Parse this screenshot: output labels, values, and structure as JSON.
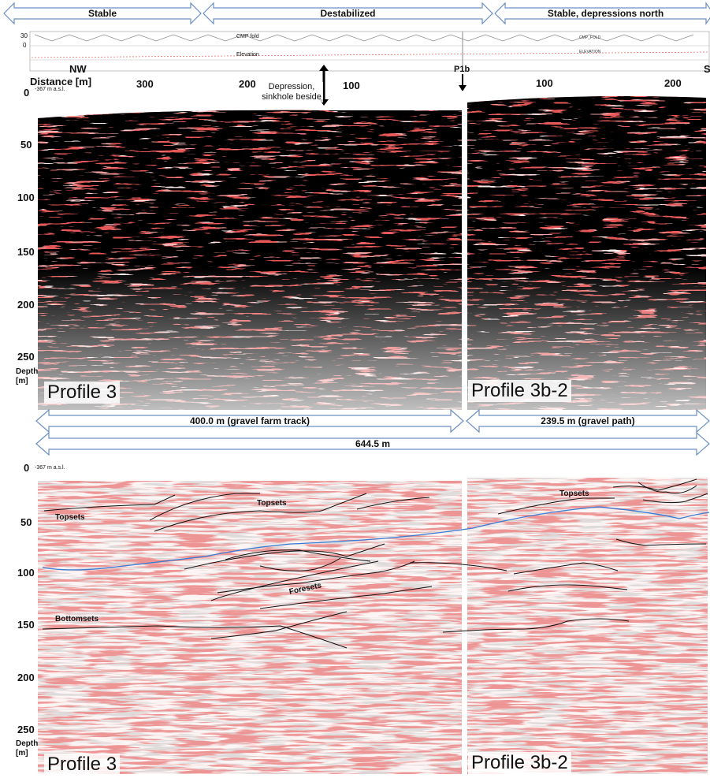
{
  "zones": [
    "Stable",
    "Destabilized",
    "Stable, depressions north"
  ],
  "header": {
    "fold_ticks": [
      "30",
      "0"
    ],
    "cmp_fold_left": "CMP fold",
    "elevation_left": "Elevation",
    "cmp_fold_right": "CMP_FOLD",
    "elevation_right": "ELEVATION",
    "nw": "NW",
    "s": "S",
    "distance_label": "Distance [m]",
    "dist_left": [
      "300",
      "200",
      "100"
    ],
    "dist_right": [
      "100",
      "200"
    ],
    "p1b": "P1b",
    "depression_note": "Depression, sinkhole beside",
    "masl": "-367 m a.s.l."
  },
  "depth_ticks": [
    "0",
    "50",
    "100",
    "150",
    "200",
    "250"
  ],
  "depth_label": "Depth [m]",
  "profiles": [
    "Profile 3",
    "Profile 3b-2"
  ],
  "lengths": {
    "left": "400.0 m (gravel farm track)",
    "right": "239.5 m (gravel path)",
    "total": "644.5 m"
  },
  "interpretation": {
    "topsets_left": "Topsets",
    "topsets_mid": "Topsets",
    "topsets_right": "Topsets",
    "foresets": "Foresets",
    "bottomsets": "Bottomsets"
  },
  "colors": {
    "reflection": "#cc1f1f",
    "horizon_blue": "#3a7bd5",
    "horizon_black": "#111111",
    "arrow_outline": "#6b8fc4"
  }
}
